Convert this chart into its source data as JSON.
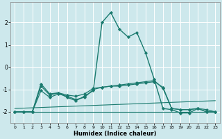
{
  "xlabel": "Humidex (Indice chaleur)",
  "xlim": [
    -0.5,
    23.5
  ],
  "ylim": [
    -2.5,
    2.9
  ],
  "yticks": [
    -2,
    -1,
    0,
    1,
    2
  ],
  "xticks": [
    0,
    1,
    2,
    3,
    4,
    5,
    6,
    7,
    8,
    9,
    10,
    11,
    12,
    13,
    14,
    15,
    16,
    17,
    18,
    19,
    20,
    21,
    22,
    23
  ],
  "bg_color": "#cde8ec",
  "line_color": "#1a7a6e",
  "grid_color": "#ffffff",
  "lines": [
    {
      "x": [
        0,
        1,
        2,
        3,
        4,
        5,
        6,
        7,
        8,
        9,
        10,
        11,
        12,
        13,
        14,
        15,
        16,
        17,
        18,
        19,
        20,
        21,
        22,
        23
      ],
      "y": [
        -2,
        -2,
        -2,
        -0.75,
        -1.2,
        -1.15,
        -1.35,
        -1.5,
        -1.3,
        -1.05,
        2.0,
        2.45,
        1.7,
        1.35,
        1.55,
        0.65,
        -0.55,
        -1.85,
        -1.9,
        -2.05,
        -2.05,
        -1.85,
        -2.0,
        -2.0
      ],
      "style": "-",
      "marker": "D",
      "markersize": 2.2,
      "linewidth": 1.0
    },
    {
      "x": [
        0,
        1,
        2,
        3,
        4,
        5,
        6,
        7,
        8,
        9,
        10,
        11,
        12,
        13,
        14,
        15,
        16,
        17,
        18,
        19,
        20,
        21,
        22,
        23
      ],
      "y": [
        -2,
        -2,
        -2,
        -0.85,
        -1.25,
        -1.15,
        -1.25,
        -1.3,
        -1.2,
        -0.95,
        -0.9,
        -0.85,
        -0.8,
        -0.75,
        -0.7,
        -0.65,
        -0.6,
        -0.95,
        -1.85,
        -1.9,
        -1.9,
        -1.85,
        -1.9,
        -2.0
      ],
      "style": "-",
      "marker": "D",
      "markersize": 2.2,
      "linewidth": 0.9
    },
    {
      "x": [
        0,
        1,
        2,
        3,
        4,
        5,
        6,
        7,
        8,
        9,
        10,
        11,
        12,
        13,
        14,
        15,
        16,
        17,
        18,
        19,
        20,
        21,
        22,
        23
      ],
      "y": [
        -2,
        -2,
        -2,
        -1.05,
        -1.35,
        -1.2,
        -1.3,
        -1.45,
        -1.35,
        -1.0,
        -0.9,
        -0.85,
        -0.85,
        -0.8,
        -0.75,
        -0.7,
        -0.65,
        -0.9,
        -1.85,
        -1.9,
        -1.9,
        -1.85,
        -2.0,
        -2.0
      ],
      "style": "-",
      "marker": "D",
      "markersize": 2.2,
      "linewidth": 0.9
    },
    {
      "x": [
        0,
        23
      ],
      "y": [
        -2.0,
        -2.0
      ],
      "style": "-",
      "marker": null,
      "markersize": 0,
      "linewidth": 0.8
    },
    {
      "x": [
        0,
        23
      ],
      "y": [
        -1.85,
        -1.5
      ],
      "style": "-",
      "marker": null,
      "markersize": 0,
      "linewidth": 0.8
    }
  ]
}
